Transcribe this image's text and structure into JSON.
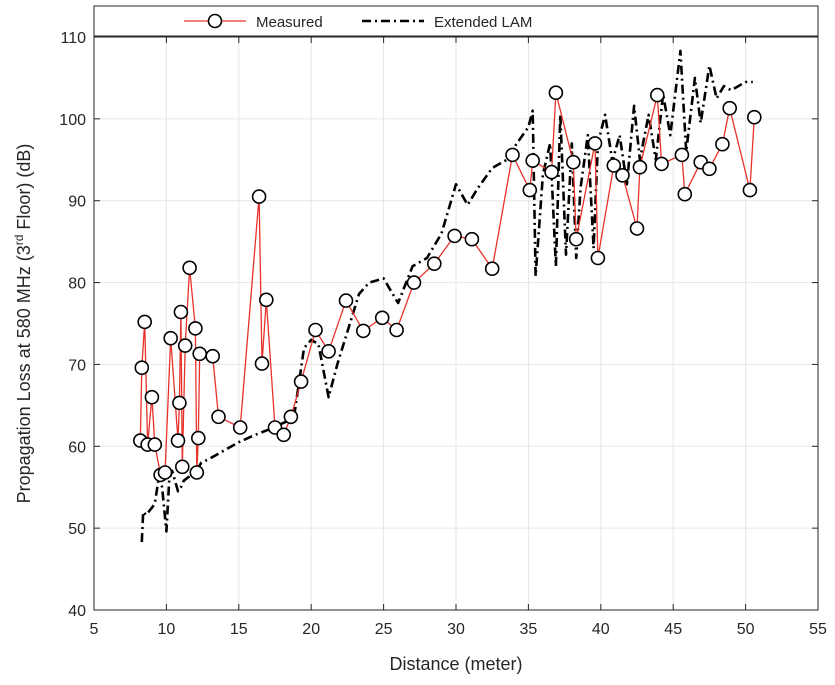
{
  "chart_data": {
    "type": "line",
    "xlabel": "Distance (meter)",
    "ylabel": {
      "prefix": "Propagation Loss at 580 MHz (3",
      "superscript": "rd",
      "suffix": " Floor) (dB)"
    },
    "xlim": [
      5,
      55
    ],
    "ylim": [
      40,
      110
    ],
    "xticks": [
      5,
      10,
      15,
      20,
      25,
      30,
      35,
      40,
      45,
      50,
      55
    ],
    "yticks": [
      40,
      50,
      60,
      70,
      80,
      90,
      100,
      110
    ],
    "grid": true,
    "legend_position": "top",
    "series": [
      {
        "name": "Measured",
        "color": "#e8322a",
        "marker": "circle",
        "style": "solid",
        "x": [
          8.2,
          8.3,
          8.5,
          8.7,
          9.0,
          9.2,
          9.6,
          9.9,
          10.3,
          10.8,
          10.9,
          11.0,
          11.1,
          11.3,
          11.6,
          12.0,
          12.1,
          12.2,
          12.3,
          13.2,
          13.6,
          15.1,
          16.4,
          16.6,
          16.9,
          17.5,
          18.1,
          18.6,
          19.3,
          20.3,
          21.2,
          22.4,
          23.6,
          24.9,
          25.9,
          27.1,
          28.5,
          29.9,
          31.1,
          32.5,
          33.9,
          35.1,
          35.3,
          36.6,
          36.9,
          38.1,
          38.3,
          39.6,
          39.8,
          40.9,
          41.5,
          42.5,
          42.7,
          43.9,
          44.2,
          45.6,
          45.8,
          46.9,
          47.5,
          48.4,
          48.9,
          50.3,
          50.6
        ],
        "y": [
          60.7,
          69.6,
          75.2,
          60.2,
          66.0,
          60.2,
          56.5,
          56.8,
          73.2,
          60.7,
          65.3,
          76.4,
          57.5,
          72.3,
          81.8,
          74.4,
          56.8,
          61.0,
          71.3,
          71.0,
          63.6,
          62.3,
          90.5,
          70.1,
          77.9,
          62.3,
          61.4,
          63.6,
          67.9,
          74.2,
          71.6,
          77.8,
          74.1,
          75.7,
          74.2,
          80.0,
          82.3,
          85.7,
          85.3,
          81.7,
          95.6,
          91.3,
          94.9,
          93.5,
          103.2,
          94.7,
          85.3,
          97.0,
          83.0,
          94.3,
          93.1,
          86.6,
          94.1,
          102.9,
          94.5,
          95.6,
          90.8,
          94.7,
          93.9,
          96.9,
          101.3,
          91.3,
          100.2
        ]
      },
      {
        "name": "Extended LAM",
        "color": "#000000",
        "style": "dash-dot",
        "x": [
          8.3,
          8.4,
          8.6,
          9.0,
          9.2,
          9.5,
          9.7,
          10.0,
          10.2,
          10.4,
          10.8,
          11.0,
          11.2,
          11.5,
          11.8,
          12.0,
          12.4,
          13.0,
          14.0,
          15.0,
          16.0,
          17.0,
          18.0,
          18.8,
          19.5,
          20.0,
          20.5,
          21.2,
          21.8,
          22.5,
          23.3,
          24.0,
          25.0,
          26.0,
          27.0,
          28.0,
          29.0,
          30.0,
          30.8,
          31.5,
          32.5,
          33.5,
          34.2,
          35.0,
          35.3,
          35.5,
          36.0,
          36.5,
          36.9,
          37.2,
          37.6,
          38.0,
          38.3,
          38.6,
          39.1,
          39.5,
          39.8,
          40.3,
          40.8,
          41.3,
          41.8,
          42.3,
          42.7,
          43.3,
          43.8,
          44.3,
          44.8,
          45.5,
          45.9,
          46.5,
          46.9,
          47.5,
          48.0,
          48.5,
          49.0,
          49.5,
          50.0,
          50.5
        ],
        "y": [
          48.3,
          52.0,
          51.6,
          52.5,
          53.0,
          56.5,
          55.0,
          49.6,
          56.0,
          57.0,
          54.5,
          55.0,
          55.8,
          56.2,
          56.5,
          56.7,
          58.0,
          58.5,
          59.5,
          60.5,
          61.3,
          62.0,
          62.8,
          63.4,
          72.0,
          73.0,
          72.5,
          66.0,
          70.0,
          74.0,
          78.6,
          80.0,
          80.5,
          77.5,
          82.0,
          83.0,
          86.0,
          92.0,
          89.5,
          91.5,
          94.0,
          95.0,
          97.0,
          99.0,
          101.0,
          80.8,
          93.2,
          97.0,
          82.0,
          100.5,
          83.4,
          97.0,
          83.0,
          91.5,
          98.0,
          84.2,
          97.0,
          100.5,
          94.8,
          98.0,
          92.0,
          101.6,
          95.0,
          100.5,
          95.0,
          103.0,
          98.0,
          108.3,
          96.0,
          105.0,
          99.5,
          106.5,
          102.5,
          104.0,
          103.5,
          104.0,
          104.5,
          104.5
        ]
      }
    ]
  }
}
